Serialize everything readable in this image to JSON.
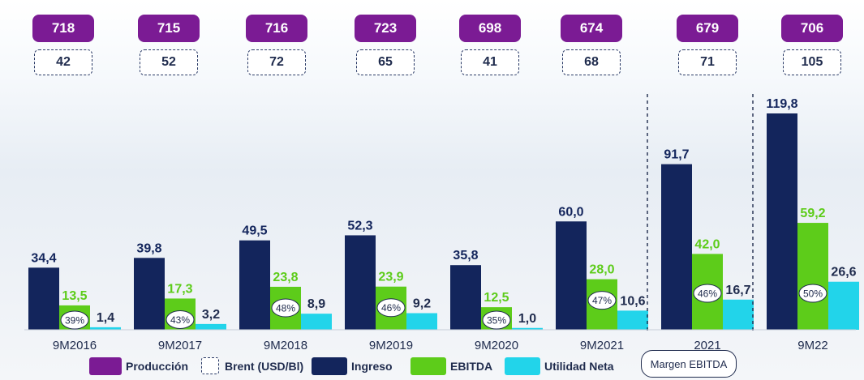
{
  "colors": {
    "produccion": "#7b1b94",
    "ingreso": "#13255c",
    "ebitda": "#5dcc1a",
    "ebitda_label": "#5dcc1a",
    "utilidad": "#22d4ea",
    "text": "#1f2b4d"
  },
  "legend": {
    "produccion": "Producción",
    "brent": "Brent (USD/Bl)",
    "ingreso": "Ingreso",
    "ebitda": "EBITDA",
    "utilidad": "Utilidad Neta",
    "margen": "Margen EBITDA"
  },
  "chart_data": {
    "type": "bar",
    "categories": [
      "9M2016",
      "9M2017",
      "9M2018",
      "9M2019",
      "9M2020",
      "9M2021",
      "2021",
      "9M22"
    ],
    "series": [
      {
        "name": "Ingreso",
        "values": [
          34.4,
          39.8,
          49.5,
          52.3,
          35.8,
          60.0,
          91.7,
          119.8
        ],
        "labels": [
          "34,4",
          "39,8",
          "49,5",
          "52,3",
          "35,8",
          "60,0",
          "91,7",
          "119,8"
        ]
      },
      {
        "name": "EBITDA",
        "values": [
          13.5,
          17.3,
          23.8,
          23.9,
          12.5,
          28.0,
          42.0,
          59.2
        ],
        "labels": [
          "13,5",
          "17,3",
          "23,8",
          "23,9",
          "12,5",
          "28,0",
          "42,0",
          "59,2"
        ]
      },
      {
        "name": "Utilidad Neta",
        "values": [
          1.4,
          3.2,
          8.9,
          9.2,
          1.0,
          10.6,
          16.7,
          26.6
        ],
        "labels": [
          "1,4",
          "3,2",
          "8,9",
          "9,2",
          "1,0",
          "10,6",
          "16,7",
          "26,6"
        ]
      }
    ],
    "margen_ebitda": [
      "39%",
      "43%",
      "48%",
      "46%",
      "35%",
      "47%",
      "46%",
      "50%"
    ],
    "produccion": [
      "718",
      "715",
      "716",
      "723",
      "698",
      "674",
      "679",
      "706"
    ],
    "brent": [
      "42",
      "52",
      "72",
      "65",
      "41",
      "68",
      "71",
      "105"
    ],
    "separators_before": [
      "2021",
      "9M22"
    ],
    "ylim": [
      0,
      120
    ],
    "grid": false
  }
}
